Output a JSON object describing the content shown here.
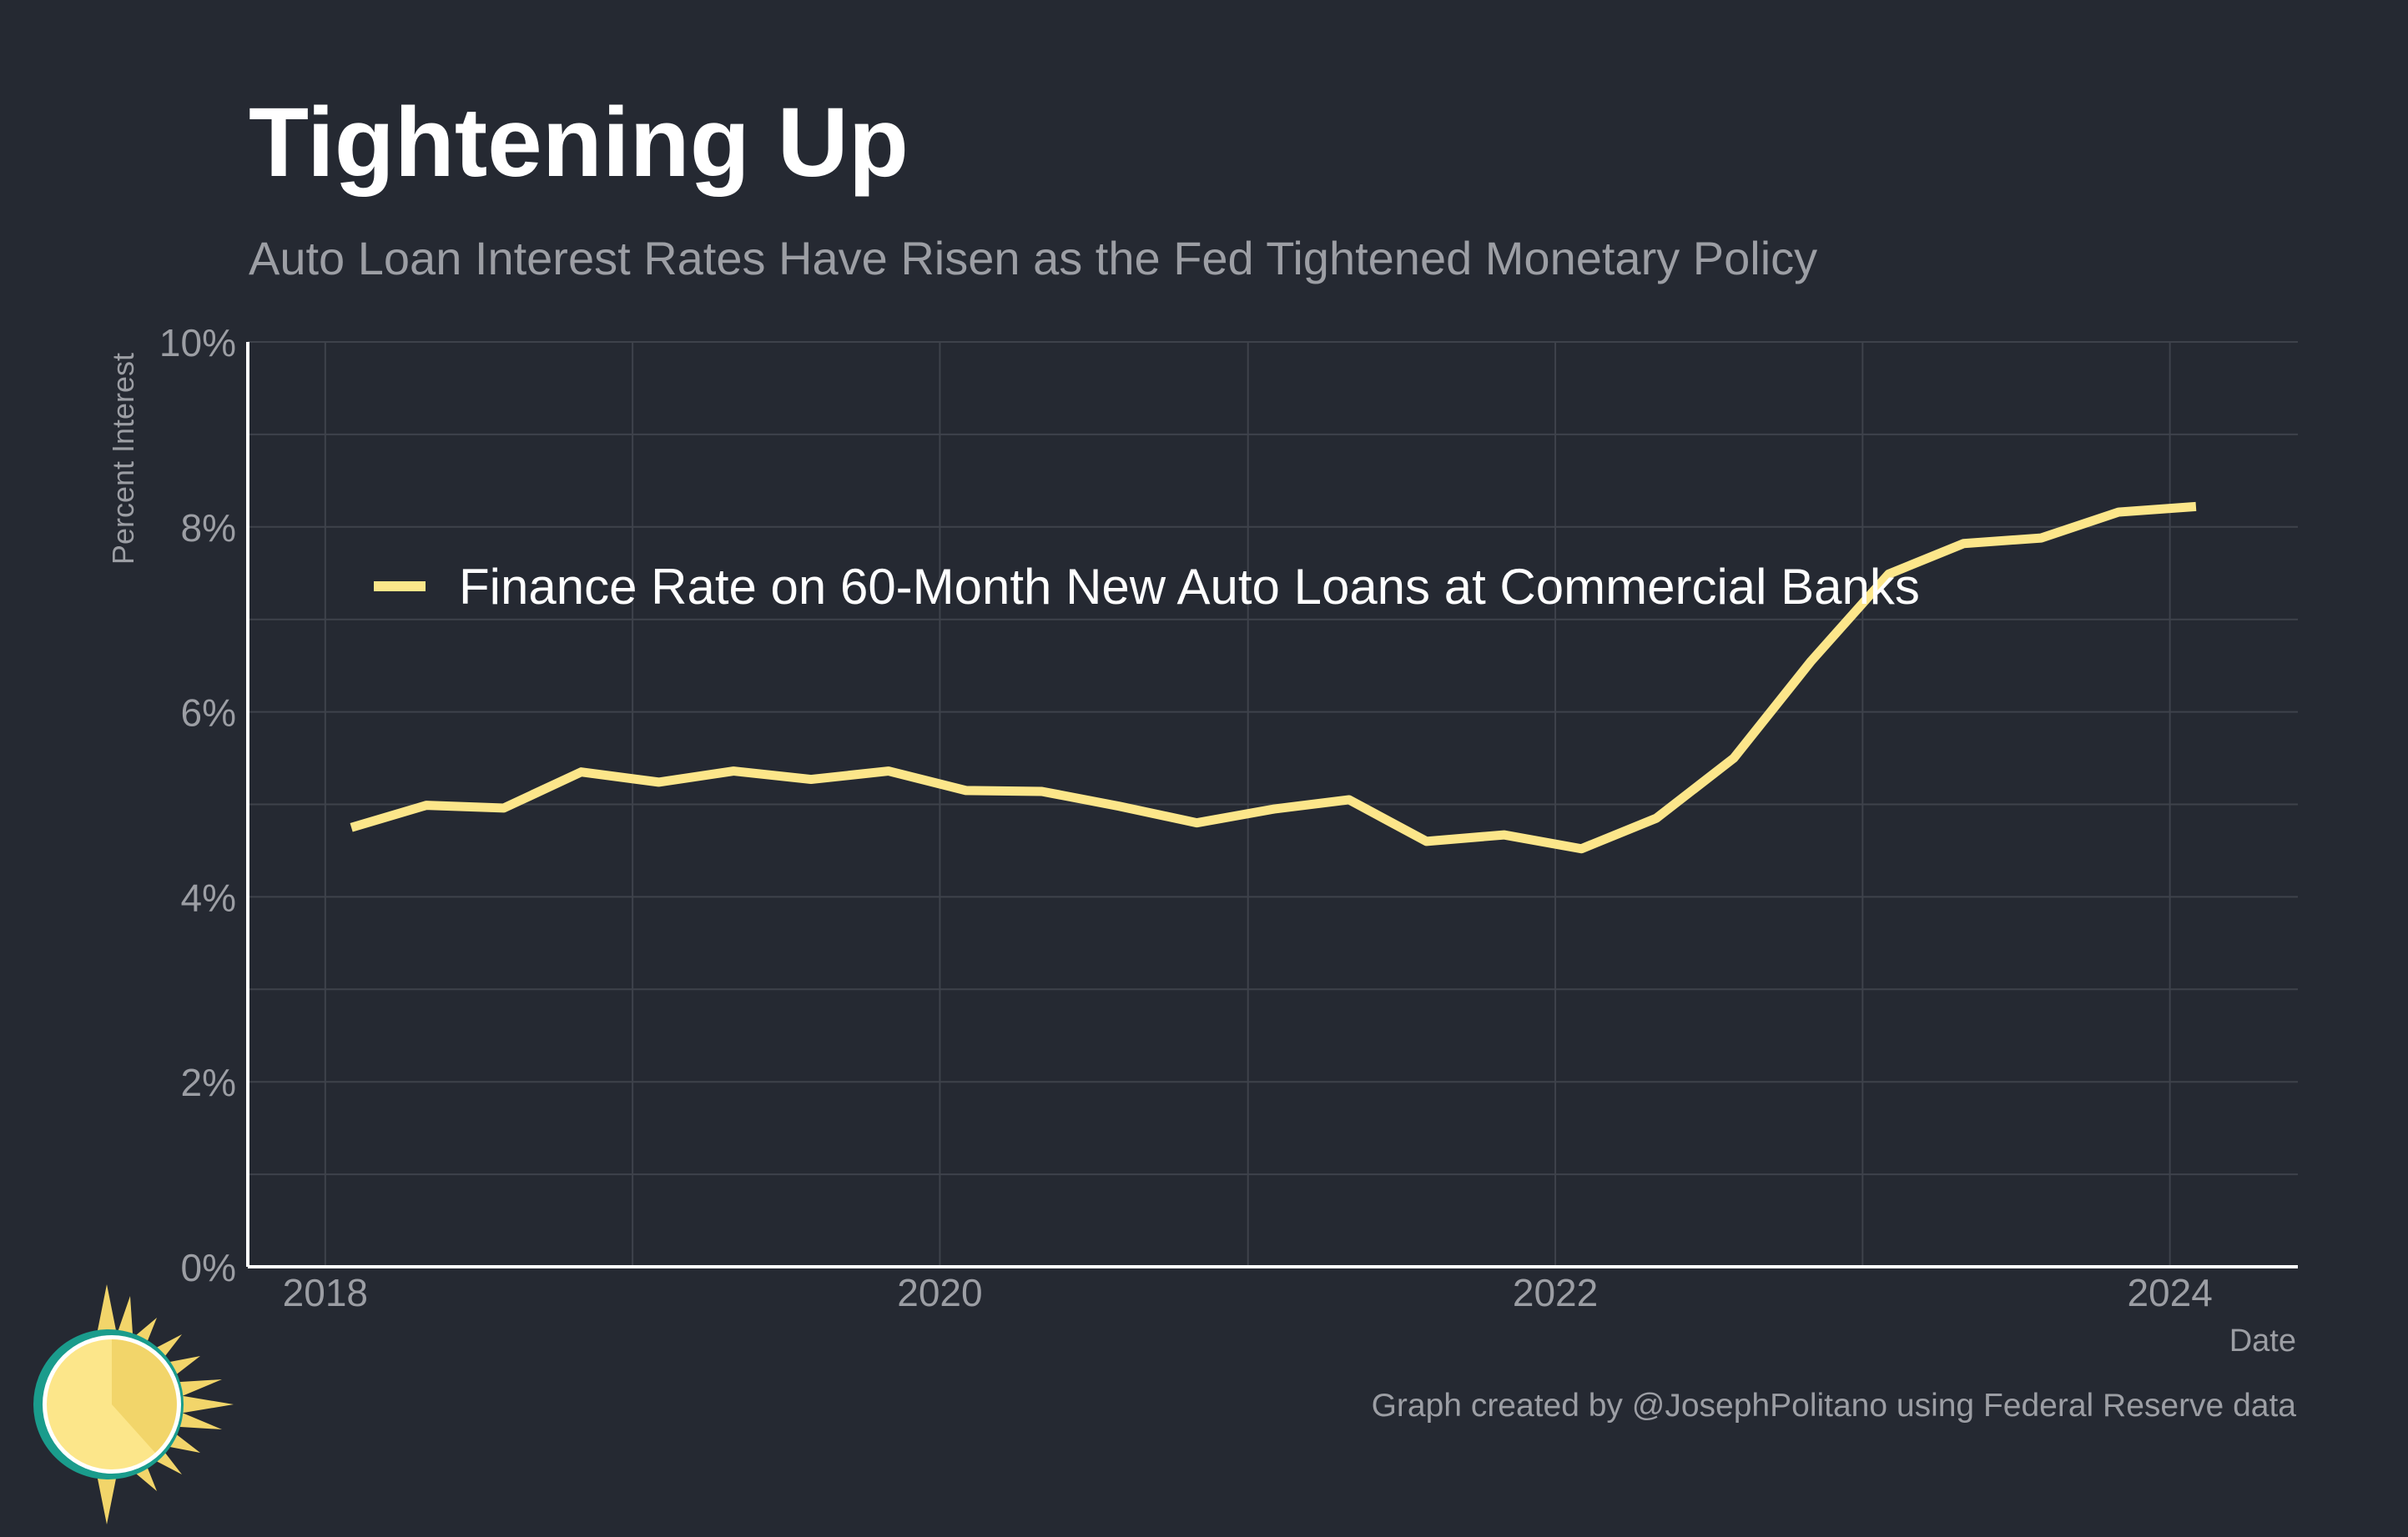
{
  "header": {
    "title": "Tightening Up",
    "subtitle": "Auto Loan Interest Rates Have Risen as the Fed Tightened Monetary Policy"
  },
  "footer": {
    "credit": "Graph created by @JosephPolitano using Federal Reserve data"
  },
  "logo": {
    "icon": "sun-logo-icon"
  },
  "colors": {
    "background": "#252932",
    "line": "#fce68a",
    "grid": "#3e424b",
    "axis": "#ffffff",
    "tick_text": "#9c9ea4",
    "legend_text": "#ffffff"
  },
  "chart_data": {
    "type": "line",
    "xlabel": "Date",
    "ylabel": "Percent Interest",
    "xlim": [
      "2017-10-01",
      "2024-06-01"
    ],
    "ylim": [
      0,
      10
    ],
    "x_ticks": [
      "2018",
      "2020",
      "2022",
      "2024"
    ],
    "y_ticks": [
      "0%",
      "2%",
      "4%",
      "6%",
      "8%",
      "10%"
    ],
    "grid": true,
    "legend_position": "upper-left",
    "series": [
      {
        "name": "Finance Rate on 60-Month New Auto Loans at Commercial Banks",
        "color": "#fce68a",
        "x": [
          "2018-02",
          "2018-05",
          "2018-08",
          "2018-11",
          "2019-02",
          "2019-05",
          "2019-08",
          "2019-11",
          "2020-02",
          "2020-05",
          "2020-08",
          "2020-11",
          "2021-02",
          "2021-05",
          "2021-08",
          "2021-11",
          "2022-02",
          "2022-05",
          "2022-08",
          "2022-11",
          "2023-02",
          "2023-05",
          "2023-08",
          "2023-11",
          "2024-02"
        ],
        "values": [
          4.75,
          4.99,
          4.96,
          5.35,
          5.24,
          5.36,
          5.27,
          5.36,
          5.15,
          5.14,
          4.98,
          4.8,
          4.95,
          5.05,
          4.6,
          4.67,
          4.52,
          4.85,
          5.5,
          6.55,
          7.49,
          7.82,
          7.88,
          8.16,
          8.22
        ]
      }
    ]
  }
}
